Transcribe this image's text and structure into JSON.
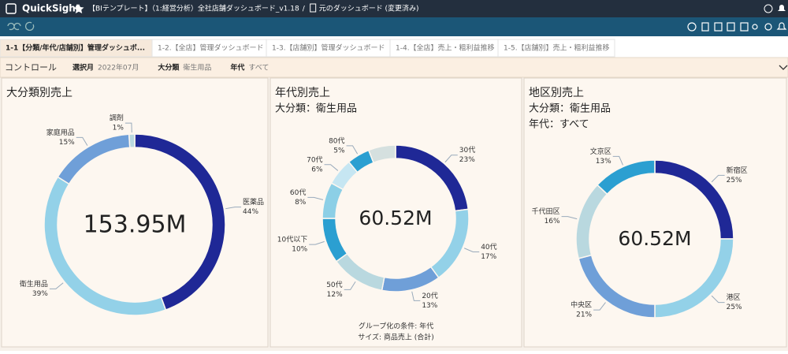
{
  "app": {
    "brand": "QuickSight",
    "dashboard": "【BIテンプレート】（1:経営分析）全社店舗ダッシュボード_v1.18",
    "separator": "/",
    "origin": "元のダッシュボード (変更済み)"
  },
  "tabs": [
    "1-1【分類/年代/店舗別】管理ダッシュボ...",
    "1-2.【全店】管理ダッシュボード",
    "1-3.【店舗別】管理ダッシュボード",
    "1-4.【全店】売上・粗利益推移",
    "1-5.【店舗別】売上・粗利益推移"
  ],
  "controls": {
    "title": "コントロール",
    "filters": [
      {
        "label": "選択月",
        "value": "2022年07月"
      },
      {
        "label": "大分類",
        "value": "衛生用品"
      },
      {
        "label": "年代",
        "value": "すべて"
      }
    ]
  },
  "chart_data": [
    {
      "type": "donut",
      "title": "大分類別売上",
      "center_label": "153.95M",
      "categories": [
        "医薬品",
        "衛生用品",
        "家庭用品",
        "調剤"
      ],
      "values": [
        44,
        39,
        15,
        1
      ],
      "value_labels": [
        "44%",
        "39%",
        "15%",
        "1%"
      ],
      "colors": [
        "#1f2896",
        "#93d1e8",
        "#6f9fd8",
        "#b9d8df"
      ]
    },
    {
      "type": "donut",
      "title": "年代別売上",
      "subtitles": [
        "大分類：衛生用品"
      ],
      "center_label": "60.52M",
      "categories": [
        "30代",
        "40代",
        "20代",
        "50代",
        "10代以下",
        "60代",
        "70代",
        "80代",
        null
      ],
      "values": [
        23,
        17,
        13,
        12,
        10,
        8,
        6,
        5,
        6
      ],
      "value_labels": [
        "23%",
        "17%",
        "13%",
        "12%",
        "10%",
        "8%",
        "6%",
        "5%",
        null
      ],
      "colors": [
        "#1f2896",
        "#93d1e8",
        "#6f9fd8",
        "#b9d8df",
        "#2b9fd1",
        "#8ccfe6",
        "#c6e6f2",
        "#2b9fd1",
        "#d5e0df"
      ],
      "footer": [
        "グループ化の条件: 年代",
        "サイズ: 商品売上 (合計)"
      ]
    },
    {
      "type": "donut",
      "title": "地区別売上",
      "subtitles": [
        "大分類：衛生用品",
        "年代：すべて"
      ],
      "center_label": "60.52M",
      "categories": [
        "新宿区",
        "港区",
        "中央区",
        "千代田区",
        "文京区"
      ],
      "values": [
        25,
        25,
        21,
        16,
        13
      ],
      "value_labels": [
        "25%",
        "25%",
        "21%",
        "16%",
        "13%"
      ],
      "colors": [
        "#1f2896",
        "#93d1e8",
        "#6f9fd8",
        "#b9d8df",
        "#2b9fd1"
      ]
    }
  ]
}
